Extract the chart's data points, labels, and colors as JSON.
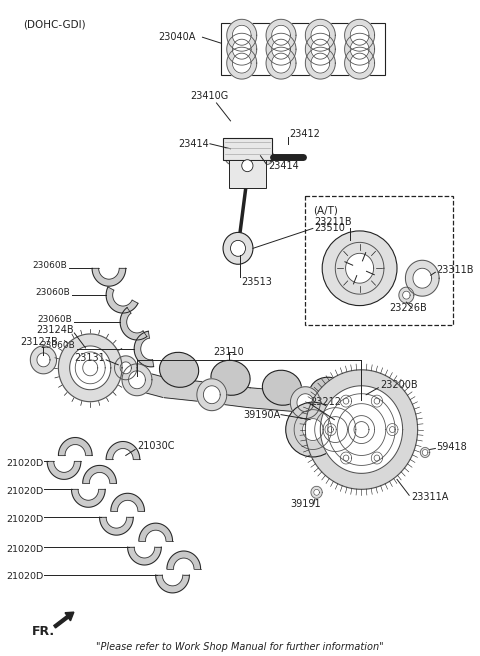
{
  "bg_color": "#ffffff",
  "fig_width": 4.8,
  "fig_height": 6.56,
  "dpi": 100,
  "footer_text": "\"Please refer to Work Shop Manual for further information\"",
  "header_label": "(DOHC-GDI)",
  "at_label": "(A/T)",
  "line_color": "#222222"
}
